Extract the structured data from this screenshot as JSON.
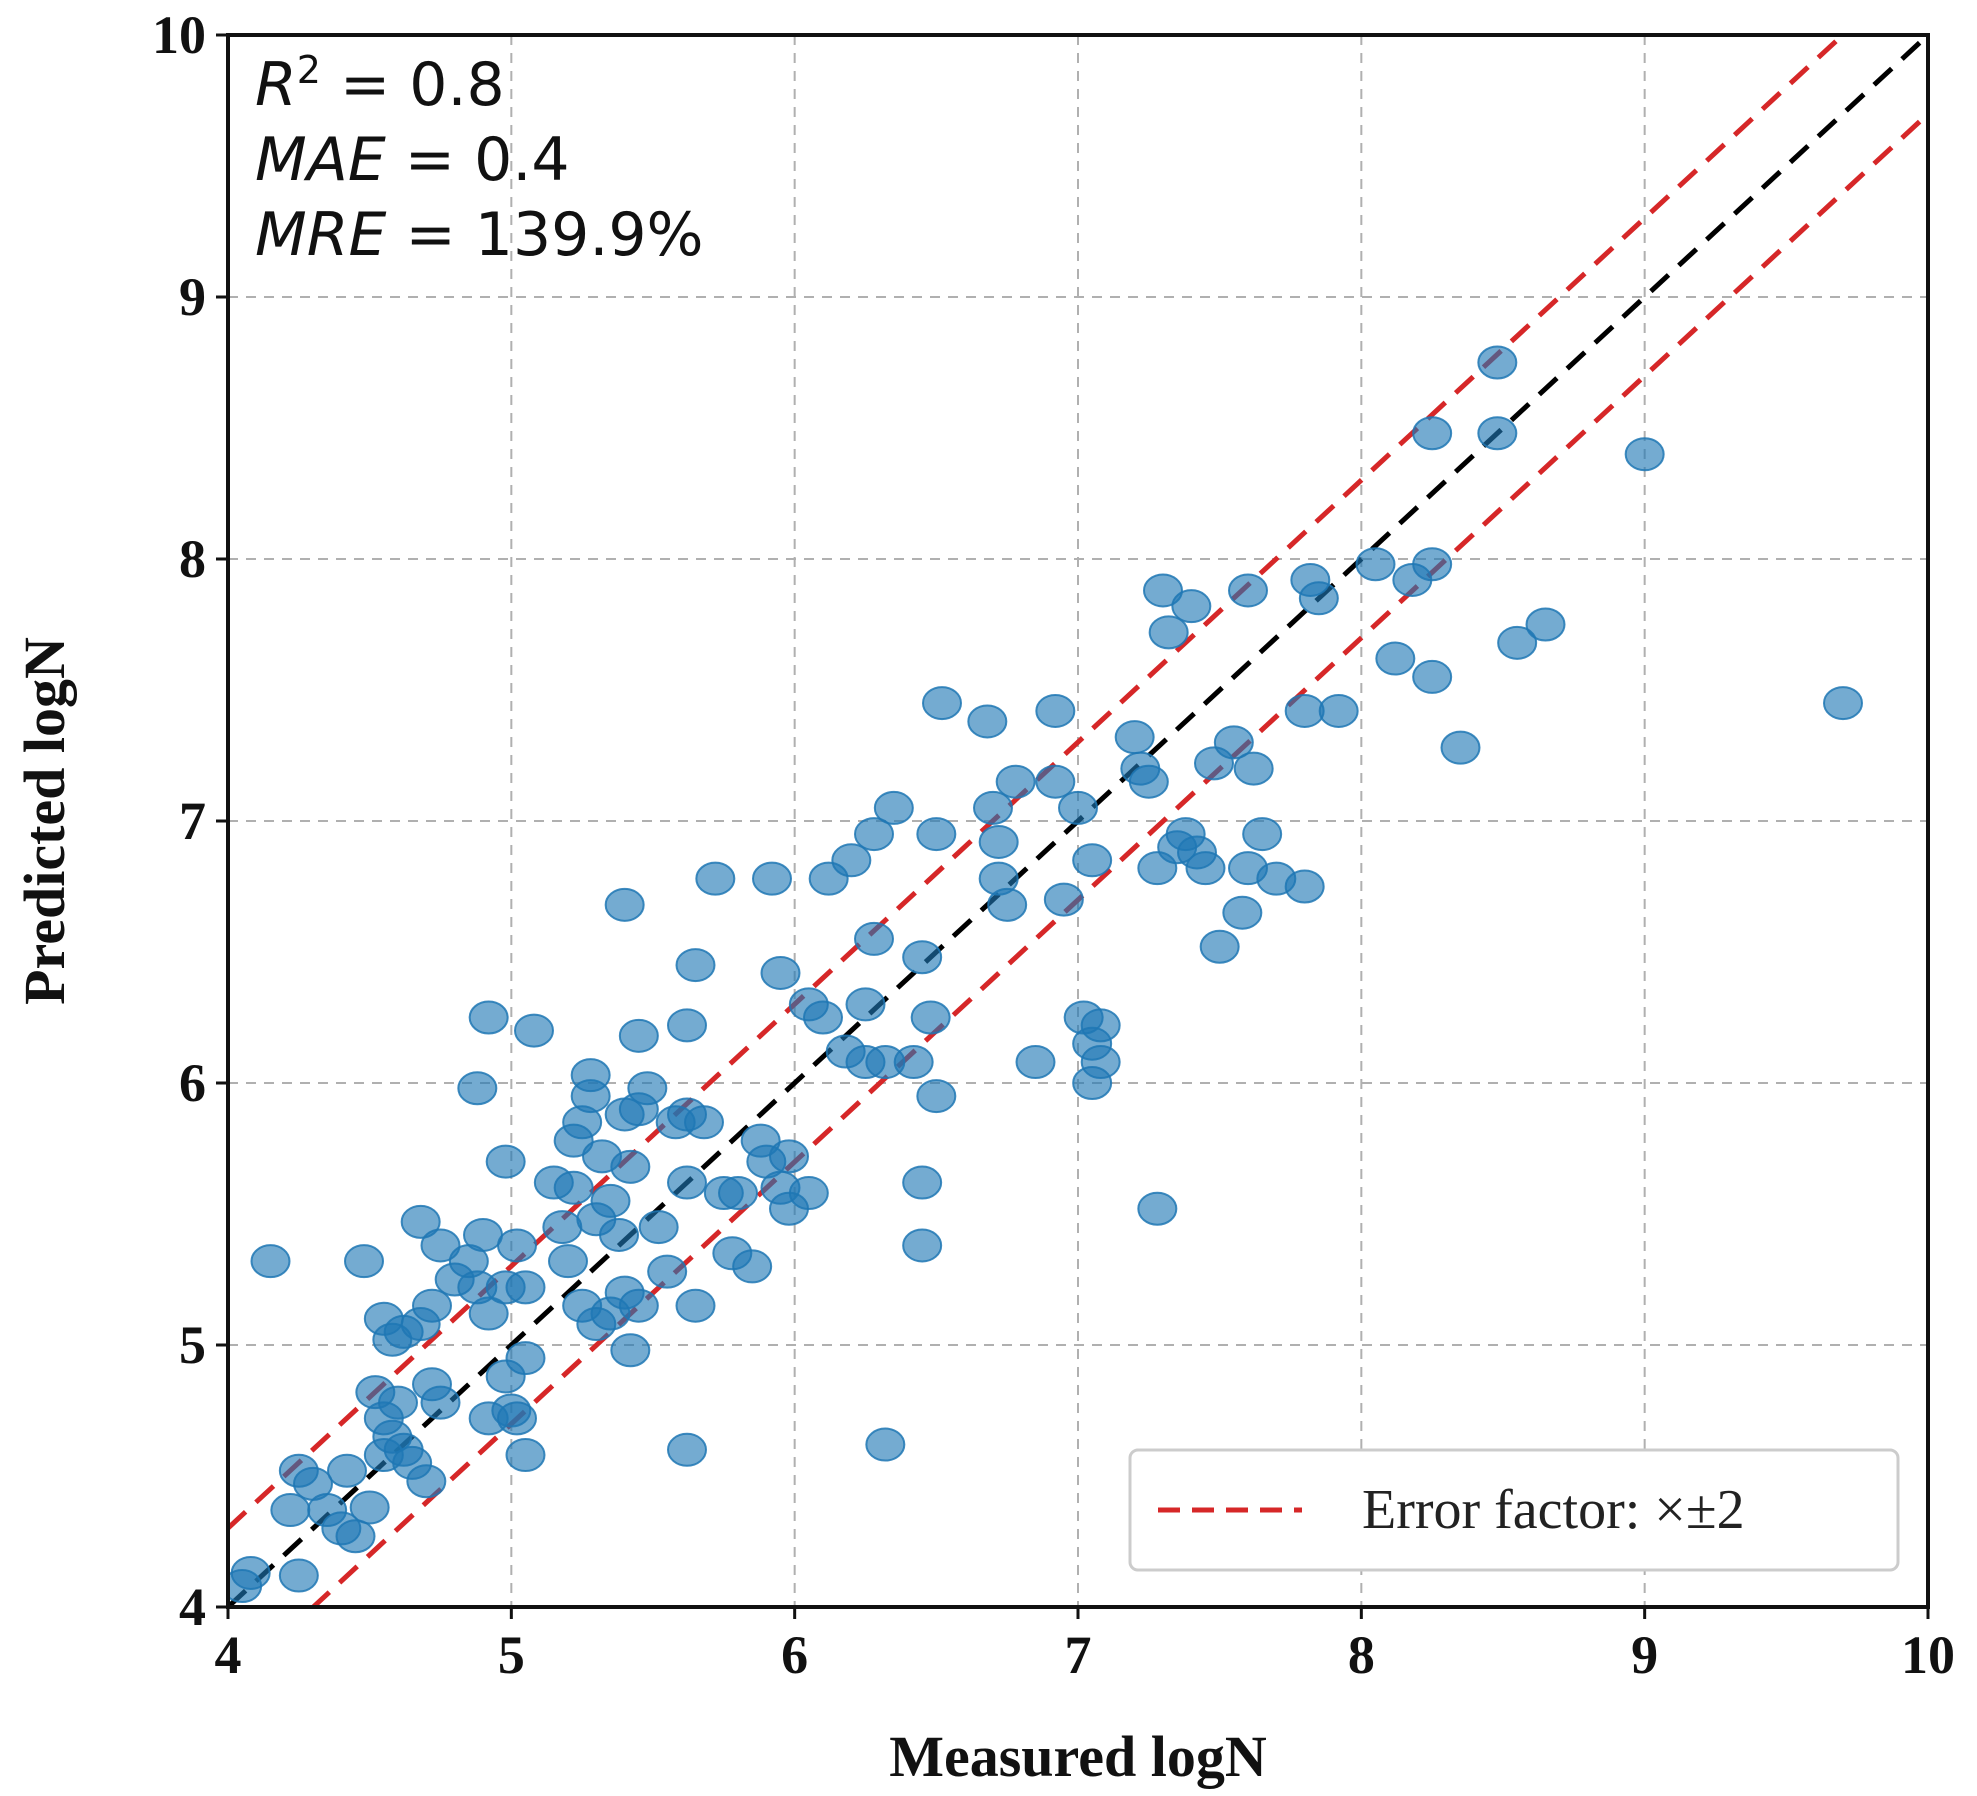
{
  "chart_data": {
    "type": "scatter",
    "xlabel": "Measured logN",
    "ylabel": "Predicted logN",
    "xlim": [
      4,
      10
    ],
    "ylim": [
      4,
      10
    ],
    "xticks": [
      "4",
      "5",
      "6",
      "7",
      "8",
      "9",
      "10"
    ],
    "yticks": [
      "4",
      "5",
      "6",
      "7",
      "8",
      "9",
      "10"
    ],
    "grid": true,
    "marker_color": "#1f77b4",
    "diagonal_color": "#000000",
    "error_band_color": "#d62728",
    "error_band_offset_log": 0.301,
    "stats": {
      "r2_var": "R",
      "r2_sup": "2",
      "r2_value": " = 0.8",
      "mae_var": "MAE",
      "mae_value": " = 0.4",
      "mre_var": "MRE",
      "mre_value": " = 139.9%"
    },
    "legend": {
      "label": "Error factor: ×±2",
      "position": "bottom-right"
    },
    "series": [
      {
        "name": "samples",
        "points": [
          [
            4.05,
            4.08
          ],
          [
            4.08,
            4.13
          ],
          [
            4.25,
            4.12
          ],
          [
            4.15,
            5.32
          ],
          [
            4.22,
            4.37
          ],
          [
            4.25,
            4.52
          ],
          [
            4.3,
            4.47
          ],
          [
            4.35,
            4.37
          ],
          [
            4.4,
            4.3
          ],
          [
            4.45,
            4.27
          ],
          [
            4.42,
            4.52
          ],
          [
            4.5,
            4.38
          ],
          [
            4.48,
            5.32
          ],
          [
            4.55,
            4.58
          ],
          [
            4.55,
            4.72
          ],
          [
            4.58,
            4.65
          ],
          [
            4.6,
            4.78
          ],
          [
            4.62,
            4.6
          ],
          [
            4.65,
            4.55
          ],
          [
            4.52,
            4.82
          ],
          [
            4.55,
            5.1
          ],
          [
            4.58,
            5.02
          ],
          [
            4.62,
            5.05
          ],
          [
            4.68,
            5.08
          ],
          [
            4.7,
            4.48
          ],
          [
            4.72,
            4.85
          ],
          [
            4.75,
            4.78
          ],
          [
            4.68,
            5.47
          ],
          [
            4.72,
            5.15
          ],
          [
            4.75,
            5.38
          ],
          [
            4.8,
            5.25
          ],
          [
            4.85,
            5.32
          ],
          [
            4.88,
            5.22
          ],
          [
            4.9,
            5.42
          ],
          [
            4.92,
            5.12
          ],
          [
            4.98,
            5.22
          ],
          [
            5.05,
            5.22
          ],
          [
            5.02,
            5.38
          ],
          [
            4.92,
            4.72
          ],
          [
            4.98,
            4.88
          ],
          [
            5.0,
            4.75
          ],
          [
            5.05,
            4.95
          ],
          [
            5.05,
            4.58
          ],
          [
            5.02,
            4.72
          ],
          [
            4.88,
            5.98
          ],
          [
            4.92,
            6.25
          ],
          [
            5.08,
            6.2
          ],
          [
            4.98,
            5.7
          ],
          [
            5.15,
            5.62
          ],
          [
            5.18,
            5.45
          ],
          [
            5.22,
            5.78
          ],
          [
            5.22,
            5.6
          ],
          [
            5.25,
            5.85
          ],
          [
            5.28,
            5.95
          ],
          [
            5.28,
            6.03
          ],
          [
            5.3,
            5.48
          ],
          [
            5.32,
            5.72
          ],
          [
            5.35,
            5.55
          ],
          [
            5.38,
            5.42
          ],
          [
            5.4,
            5.88
          ],
          [
            5.42,
            5.68
          ],
          [
            5.45,
            5.9
          ],
          [
            5.48,
            5.98
          ],
          [
            5.2,
            5.32
          ],
          [
            5.25,
            5.15
          ],
          [
            5.3,
            5.08
          ],
          [
            5.35,
            5.12
          ],
          [
            5.4,
            5.2
          ],
          [
            5.45,
            5.15
          ],
          [
            5.42,
            4.98
          ],
          [
            5.52,
            5.45
          ],
          [
            5.55,
            5.28
          ],
          [
            5.58,
            5.85
          ],
          [
            5.62,
            5.62
          ],
          [
            5.62,
            5.88
          ],
          [
            5.68,
            5.85
          ],
          [
            5.65,
            5.15
          ],
          [
            5.75,
            5.58
          ],
          [
            5.78,
            5.35
          ],
          [
            5.85,
            5.3
          ],
          [
            5.8,
            5.58
          ],
          [
            5.88,
            5.78
          ],
          [
            5.9,
            5.7
          ],
          [
            5.95,
            5.6
          ],
          [
            5.98,
            5.72
          ],
          [
            6.05,
            5.58
          ],
          [
            5.98,
            5.52
          ],
          [
            5.4,
            6.68
          ],
          [
            5.45,
            6.18
          ],
          [
            5.62,
            6.22
          ],
          [
            5.65,
            6.45
          ],
          [
            5.72,
            6.78
          ],
          [
            5.92,
            6.78
          ],
          [
            5.95,
            6.42
          ],
          [
            6.05,
            6.3
          ],
          [
            6.1,
            6.25
          ],
          [
            6.12,
            6.78
          ],
          [
            6.18,
            6.12
          ],
          [
            6.2,
            6.85
          ],
          [
            6.25,
            6.3
          ],
          [
            6.25,
            6.08
          ],
          [
            6.28,
            6.55
          ],
          [
            6.28,
            6.95
          ],
          [
            6.32,
            6.08
          ],
          [
            6.35,
            7.05
          ],
          [
            6.42,
            6.08
          ],
          [
            6.45,
            6.48
          ],
          [
            6.45,
            5.62
          ],
          [
            6.45,
            5.38
          ],
          [
            6.48,
            6.25
          ],
          [
            6.5,
            5.95
          ],
          [
            6.5,
            6.95
          ],
          [
            6.52,
            7.45
          ],
          [
            6.68,
            7.38
          ],
          [
            6.7,
            7.05
          ],
          [
            6.72,
            6.92
          ],
          [
            6.72,
            6.78
          ],
          [
            6.75,
            6.68
          ],
          [
            6.78,
            7.15
          ],
          [
            6.92,
            7.15
          ],
          [
            6.92,
            7.42
          ],
          [
            6.95,
            6.7
          ],
          [
            7.0,
            7.05
          ],
          [
            7.05,
            6.85
          ],
          [
            7.02,
            6.25
          ],
          [
            7.05,
            6.15
          ],
          [
            7.08,
            6.22
          ],
          [
            7.08,
            6.08
          ],
          [
            7.05,
            6.0
          ],
          [
            6.85,
            6.08
          ],
          [
            7.2,
            7.32
          ],
          [
            7.22,
            7.2
          ],
          [
            7.25,
            7.15
          ],
          [
            7.28,
            6.82
          ],
          [
            7.3,
            7.88
          ],
          [
            7.32,
            7.72
          ],
          [
            7.35,
            6.9
          ],
          [
            7.38,
            6.95
          ],
          [
            7.4,
            7.82
          ],
          [
            7.42,
            6.88
          ],
          [
            7.45,
            6.82
          ],
          [
            7.48,
            7.22
          ],
          [
            7.5,
            6.52
          ],
          [
            7.55,
            7.3
          ],
          [
            7.58,
            6.65
          ],
          [
            7.6,
            6.82
          ],
          [
            7.62,
            7.2
          ],
          [
            7.65,
            6.95
          ],
          [
            7.7,
            6.78
          ],
          [
            7.6,
            7.88
          ],
          [
            7.28,
            5.52
          ],
          [
            6.32,
            4.62
          ],
          [
            5.62,
            4.6
          ],
          [
            7.8,
            7.42
          ],
          [
            7.82,
            7.92
          ],
          [
            7.85,
            7.85
          ],
          [
            7.8,
            6.75
          ],
          [
            7.92,
            7.42
          ],
          [
            8.05,
            7.98
          ],
          [
            8.12,
            7.62
          ],
          [
            8.18,
            7.92
          ],
          [
            8.25,
            7.98
          ],
          [
            8.25,
            7.55
          ],
          [
            8.25,
            8.48
          ],
          [
            8.35,
            7.28
          ],
          [
            8.48,
            8.75
          ],
          [
            8.48,
            8.48
          ],
          [
            8.55,
            7.68
          ],
          [
            8.65,
            7.75
          ],
          [
            9.0,
            8.4
          ],
          [
            9.7,
            7.45
          ]
        ]
      }
    ]
  }
}
